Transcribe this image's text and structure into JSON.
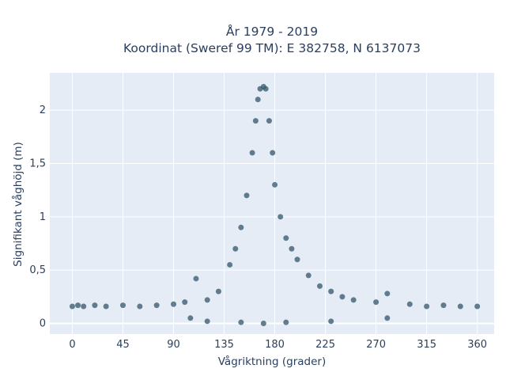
{
  "chart_data": {
    "type": "scatter",
    "title": "År 1979 - 2019",
    "subtitle": "Koordinat (Sweref 99 TM): E 382758, N 6137073",
    "xlabel": "Vågriktning (grader)",
    "ylabel": "Signifikant våghöjd (m)",
    "xlim": [
      -20,
      375
    ],
    "ylim": [
      -0.1,
      2.35
    ],
    "xticks": [
      0,
      45,
      90,
      135,
      180,
      225,
      270,
      315,
      360
    ],
    "xtick_labels": [
      "0",
      "45",
      "90",
      "135",
      "180",
      "225",
      "270",
      "315",
      "360"
    ],
    "yticks": [
      0,
      0.5,
      1,
      1.5,
      2
    ],
    "ytick_labels": [
      "0",
      "0,5",
      "1",
      "1,5",
      "2"
    ],
    "grid": true,
    "marker_color": "#33566b",
    "background_color": "#e5ecf6",
    "series": [
      {
        "values": [
          [
            0,
            0.16
          ],
          [
            5,
            0.17
          ],
          [
            10,
            0.16
          ],
          [
            20,
            0.17
          ],
          [
            30,
            0.16
          ],
          [
            45,
            0.17
          ],
          [
            60,
            0.16
          ],
          [
            75,
            0.17
          ],
          [
            90,
            0.18
          ],
          [
            100,
            0.2
          ],
          [
            110,
            0.42
          ],
          [
            120,
            0.22
          ],
          [
            130,
            0.3
          ],
          [
            140,
            0.55
          ],
          [
            145,
            0.7
          ],
          [
            150,
            0.9
          ],
          [
            155,
            1.2
          ],
          [
            160,
            1.6
          ],
          [
            163,
            1.9
          ],
          [
            165,
            2.1
          ],
          [
            167,
            2.2
          ],
          [
            170,
            2.22
          ],
          [
            172,
            2.2
          ],
          [
            175,
            1.9
          ],
          [
            178,
            1.6
          ],
          [
            180,
            1.3
          ],
          [
            185,
            1.0
          ],
          [
            190,
            0.8
          ],
          [
            195,
            0.7
          ],
          [
            200,
            0.6
          ],
          [
            210,
            0.45
          ],
          [
            220,
            0.35
          ],
          [
            230,
            0.3
          ],
          [
            240,
            0.25
          ],
          [
            250,
            0.22
          ],
          [
            270,
            0.2
          ],
          [
            280,
            0.28
          ],
          [
            300,
            0.18
          ],
          [
            315,
            0.16
          ],
          [
            330,
            0.17
          ],
          [
            345,
            0.16
          ],
          [
            360,
            0.16
          ],
          [
            120,
            0.02
          ],
          [
            150,
            0.01
          ],
          [
            170,
            0.0
          ],
          [
            190,
            0.01
          ],
          [
            230,
            0.02
          ],
          [
            280,
            0.05
          ],
          [
            105,
            0.05
          ]
        ]
      }
    ]
  }
}
